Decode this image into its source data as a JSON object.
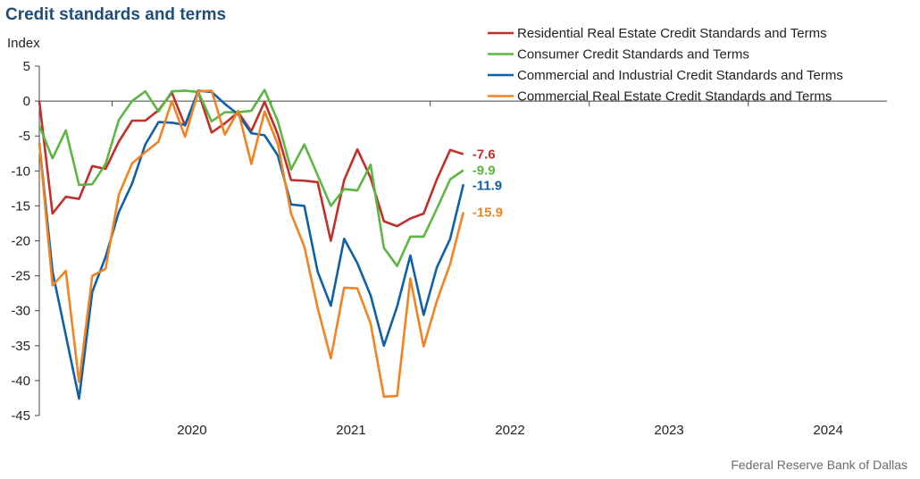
{
  "title": "Credit standards and terms",
  "source": "Federal Reserve Bank of Dallas",
  "chart_data": {
    "type": "line",
    "ylabel": "Index",
    "ylim": [
      -45,
      5
    ],
    "yticks": [
      "5",
      "0",
      "-5",
      "-10",
      "-15",
      "-20",
      "-25",
      "-30",
      "-35",
      "-40",
      "-45"
    ],
    "year_labels": [
      "2020",
      "2021",
      "2022",
      "2023",
      "2024"
    ],
    "x_start": 2019.5,
    "x_step": 0.08333333,
    "x_end": 2024.83,
    "grid": false,
    "legend_position": "top-right",
    "series": [
      {
        "name": "Residential Real Estate Credit Standards and Terms",
        "color": "#c0302b",
        "end_label": "-7.6",
        "values": [
          0,
          -16.1,
          -13.7,
          -14,
          -9.3,
          -9.7,
          -5.8,
          -2.8,
          -2.8,
          -1.3,
          1.2,
          -3.5,
          1.3,
          -4.5,
          -3.2,
          -1.6,
          -4.3,
          -0.1,
          -4.8,
          -11.3,
          -11.4,
          -11.6,
          -20,
          -11.3,
          -6.9,
          -11,
          -17.2,
          -17.9,
          -16.8,
          -16.1,
          -11.2,
          -7.0,
          -7.6
        ]
      },
      {
        "name": "Consumer Credit Standards and Terms",
        "color": "#5db543",
        "end_label": "-9.9",
        "values": [
          -3.5,
          -8.2,
          -4.2,
          -12,
          -11.9,
          -9,
          -2.7,
          0,
          1.4,
          -1.5,
          1.4,
          1.5,
          1.3,
          -2.9,
          -1.6,
          -1.6,
          -1.4,
          1.6,
          -2.9,
          -9.8,
          -6.2,
          -10.6,
          -15,
          -12.6,
          -12.8,
          -9.1,
          -21,
          -23.6,
          -19.4,
          -19.4,
          -15.4,
          -11.2,
          -9.9
        ]
      },
      {
        "name": "Commercial and Industrial Credit Standards and Terms",
        "color": "#1060a8",
        "end_label": "-11.9",
        "values": [
          -6,
          -24.4,
          -33.5,
          -42.6,
          -27.3,
          -22.3,
          -15.9,
          -11.8,
          -6.2,
          -3,
          -3.1,
          -3.4,
          1.5,
          1.3,
          -0.4,
          -1.9,
          -4.6,
          -4.9,
          -7.8,
          -14.8,
          -15,
          -24.4,
          -29.3,
          -19.7,
          -23.2,
          -27.8,
          -35,
          -29.4,
          -22.1,
          -30.6,
          -23.8,
          -19.7,
          -11.9
        ]
      },
      {
        "name": "Commercial Real Estate Credit Standards and Terms",
        "color": "#f08423",
        "end_label": "-15.9",
        "values": [
          -6,
          -26.4,
          -24.3,
          -40.2,
          -25,
          -24,
          -13.4,
          -8.9,
          -7.3,
          -5.8,
          0,
          -5.1,
          1.4,
          1.5,
          -4.8,
          -1.4,
          -9,
          -1.5,
          -6.2,
          -16.1,
          -20.8,
          -29.6,
          -36.8,
          -26.7,
          -26.8,
          -31.8,
          -42.3,
          -42.2,
          -25.4,
          -35.1,
          -28.6,
          -23.3,
          -15.9
        ]
      }
    ]
  }
}
